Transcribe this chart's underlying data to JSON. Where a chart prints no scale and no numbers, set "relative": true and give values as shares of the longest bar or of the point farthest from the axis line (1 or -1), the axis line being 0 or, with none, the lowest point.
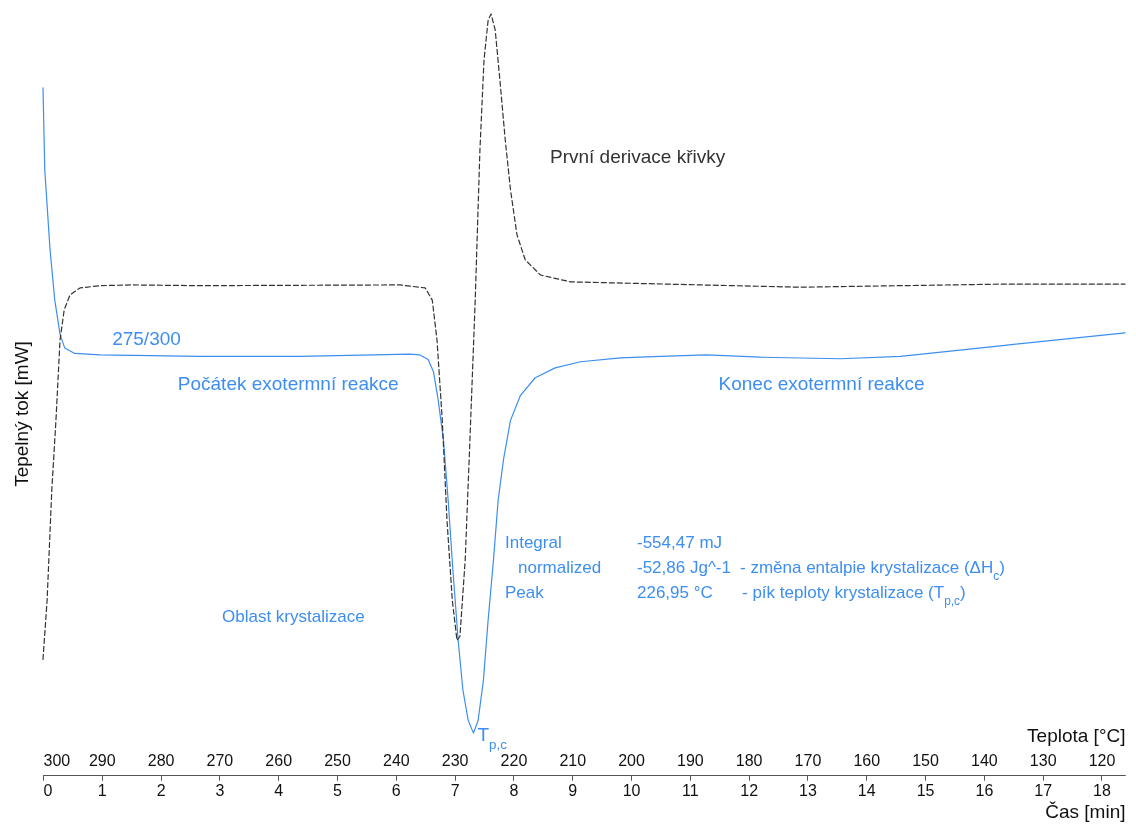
{
  "chart_data": {
    "type": "line",
    "relative": true,
    "xlabel": "Čas [min]",
    "ylabel": "Tepelný tok [mW]",
    "x2label": "Teplota [°C]",
    "xlim": [
      0,
      18.4
    ],
    "xticks": [
      0,
      1,
      2,
      3,
      4,
      5,
      6,
      7,
      8,
      9,
      10,
      11,
      12,
      13,
      14,
      15,
      16,
      17,
      18
    ],
    "x2lim": [
      300,
      116
    ],
    "x2ticks": [
      300,
      290,
      280,
      270,
      260,
      250,
      240,
      230,
      220,
      210,
      200,
      190,
      180,
      170,
      160,
      150,
      140,
      130,
      120
    ],
    "series": [
      {
        "color": "#3d8ef0",
        "line_style": "solid",
        "x": [
          0,
          0.03,
          0.12,
          0.2,
          0.29,
          0.37,
          0.54,
          0.97,
          2.67,
          4.37,
          6.24,
          6.41,
          6.55,
          6.64,
          6.72,
          6.81,
          6.89,
          6.97,
          7.06,
          7.14,
          7.23,
          7.32,
          7.4,
          7.49,
          7.57,
          7.66,
          7.74,
          7.83,
          7.95,
          8.12,
          8.37,
          8.71,
          9.14,
          9.82,
          10.5,
          11.28,
          12.2,
          13.56,
          14.58,
          16.28,
          18.4
        ],
        "values": [
          0.903,
          0.795,
          0.69,
          0.624,
          0.579,
          0.561,
          0.554,
          0.552,
          0.55,
          0.55,
          0.553,
          0.552,
          0.546,
          0.53,
          0.493,
          0.44,
          0.361,
          0.27,
          0.177,
          0.112,
          0.072,
          0.055,
          0.072,
          0.125,
          0.204,
          0.282,
          0.361,
          0.414,
          0.466,
          0.499,
          0.522,
          0.535,
          0.543,
          0.548,
          0.55,
          0.552,
          0.549,
          0.547,
          0.55,
          0.564,
          0.581
        ]
      },
      {
        "color": "#333333",
        "line_style": "dashed",
        "x": [
          0,
          0.07,
          0.15,
          0.22,
          0.29,
          0.36,
          0.46,
          0.63,
          0.97,
          1.48,
          2.67,
          6.07,
          6.5,
          6.62,
          6.7,
          6.79,
          6.87,
          6.96,
          7.04,
          7.09,
          7.18,
          7.26,
          7.35,
          7.43,
          7.5,
          7.57,
          7.62,
          7.69,
          7.77,
          7.86,
          7.95,
          8.06,
          8.2,
          8.46,
          8.97,
          11.18,
          12.88,
          16.28,
          18.4
        ],
        "values": [
          0.152,
          0.23,
          0.375,
          0.466,
          0.572,
          0.611,
          0.631,
          0.64,
          0.643,
          0.644,
          0.643,
          0.644,
          0.64,
          0.624,
          0.572,
          0.466,
          0.335,
          0.23,
          0.177,
          0.182,
          0.283,
          0.44,
          0.624,
          0.821,
          0.94,
          0.992,
          1,
          0.979,
          0.913,
          0.835,
          0.769,
          0.71,
          0.677,
          0.657,
          0.648,
          0.644,
          0.641,
          0.645,
          0.645
        ]
      }
    ],
    "annotations": [
      {
        "text": "275/300",
        "x": 1.76,
        "y": 0.552
      },
      {
        "text": "Počátek exotermní reakce",
        "x": 6.25,
        "y": 0.552
      },
      {
        "text": "Konec exotermní reakce",
        "x": 11.25,
        "y": 0.552
      },
      {
        "text": "První derivace křivky",
        "x": 7.89,
        "y": 0.811
      },
      {
        "text": "T$_{p,c}$",
        "x": 7.32,
        "y": 0.055
      },
      "Integral",
      "normalized",
      "Peak",
      "-554,47 mJ",
      "-52,86 Jg^-1",
      "226,95 °C",
      "- změna entalpie krystalizace (ΔH$_{c}$)",
      "- pík teploty krystalizace (T$_{p,c}$)",
      "Oblast krystalizace"
    ]
  }
}
